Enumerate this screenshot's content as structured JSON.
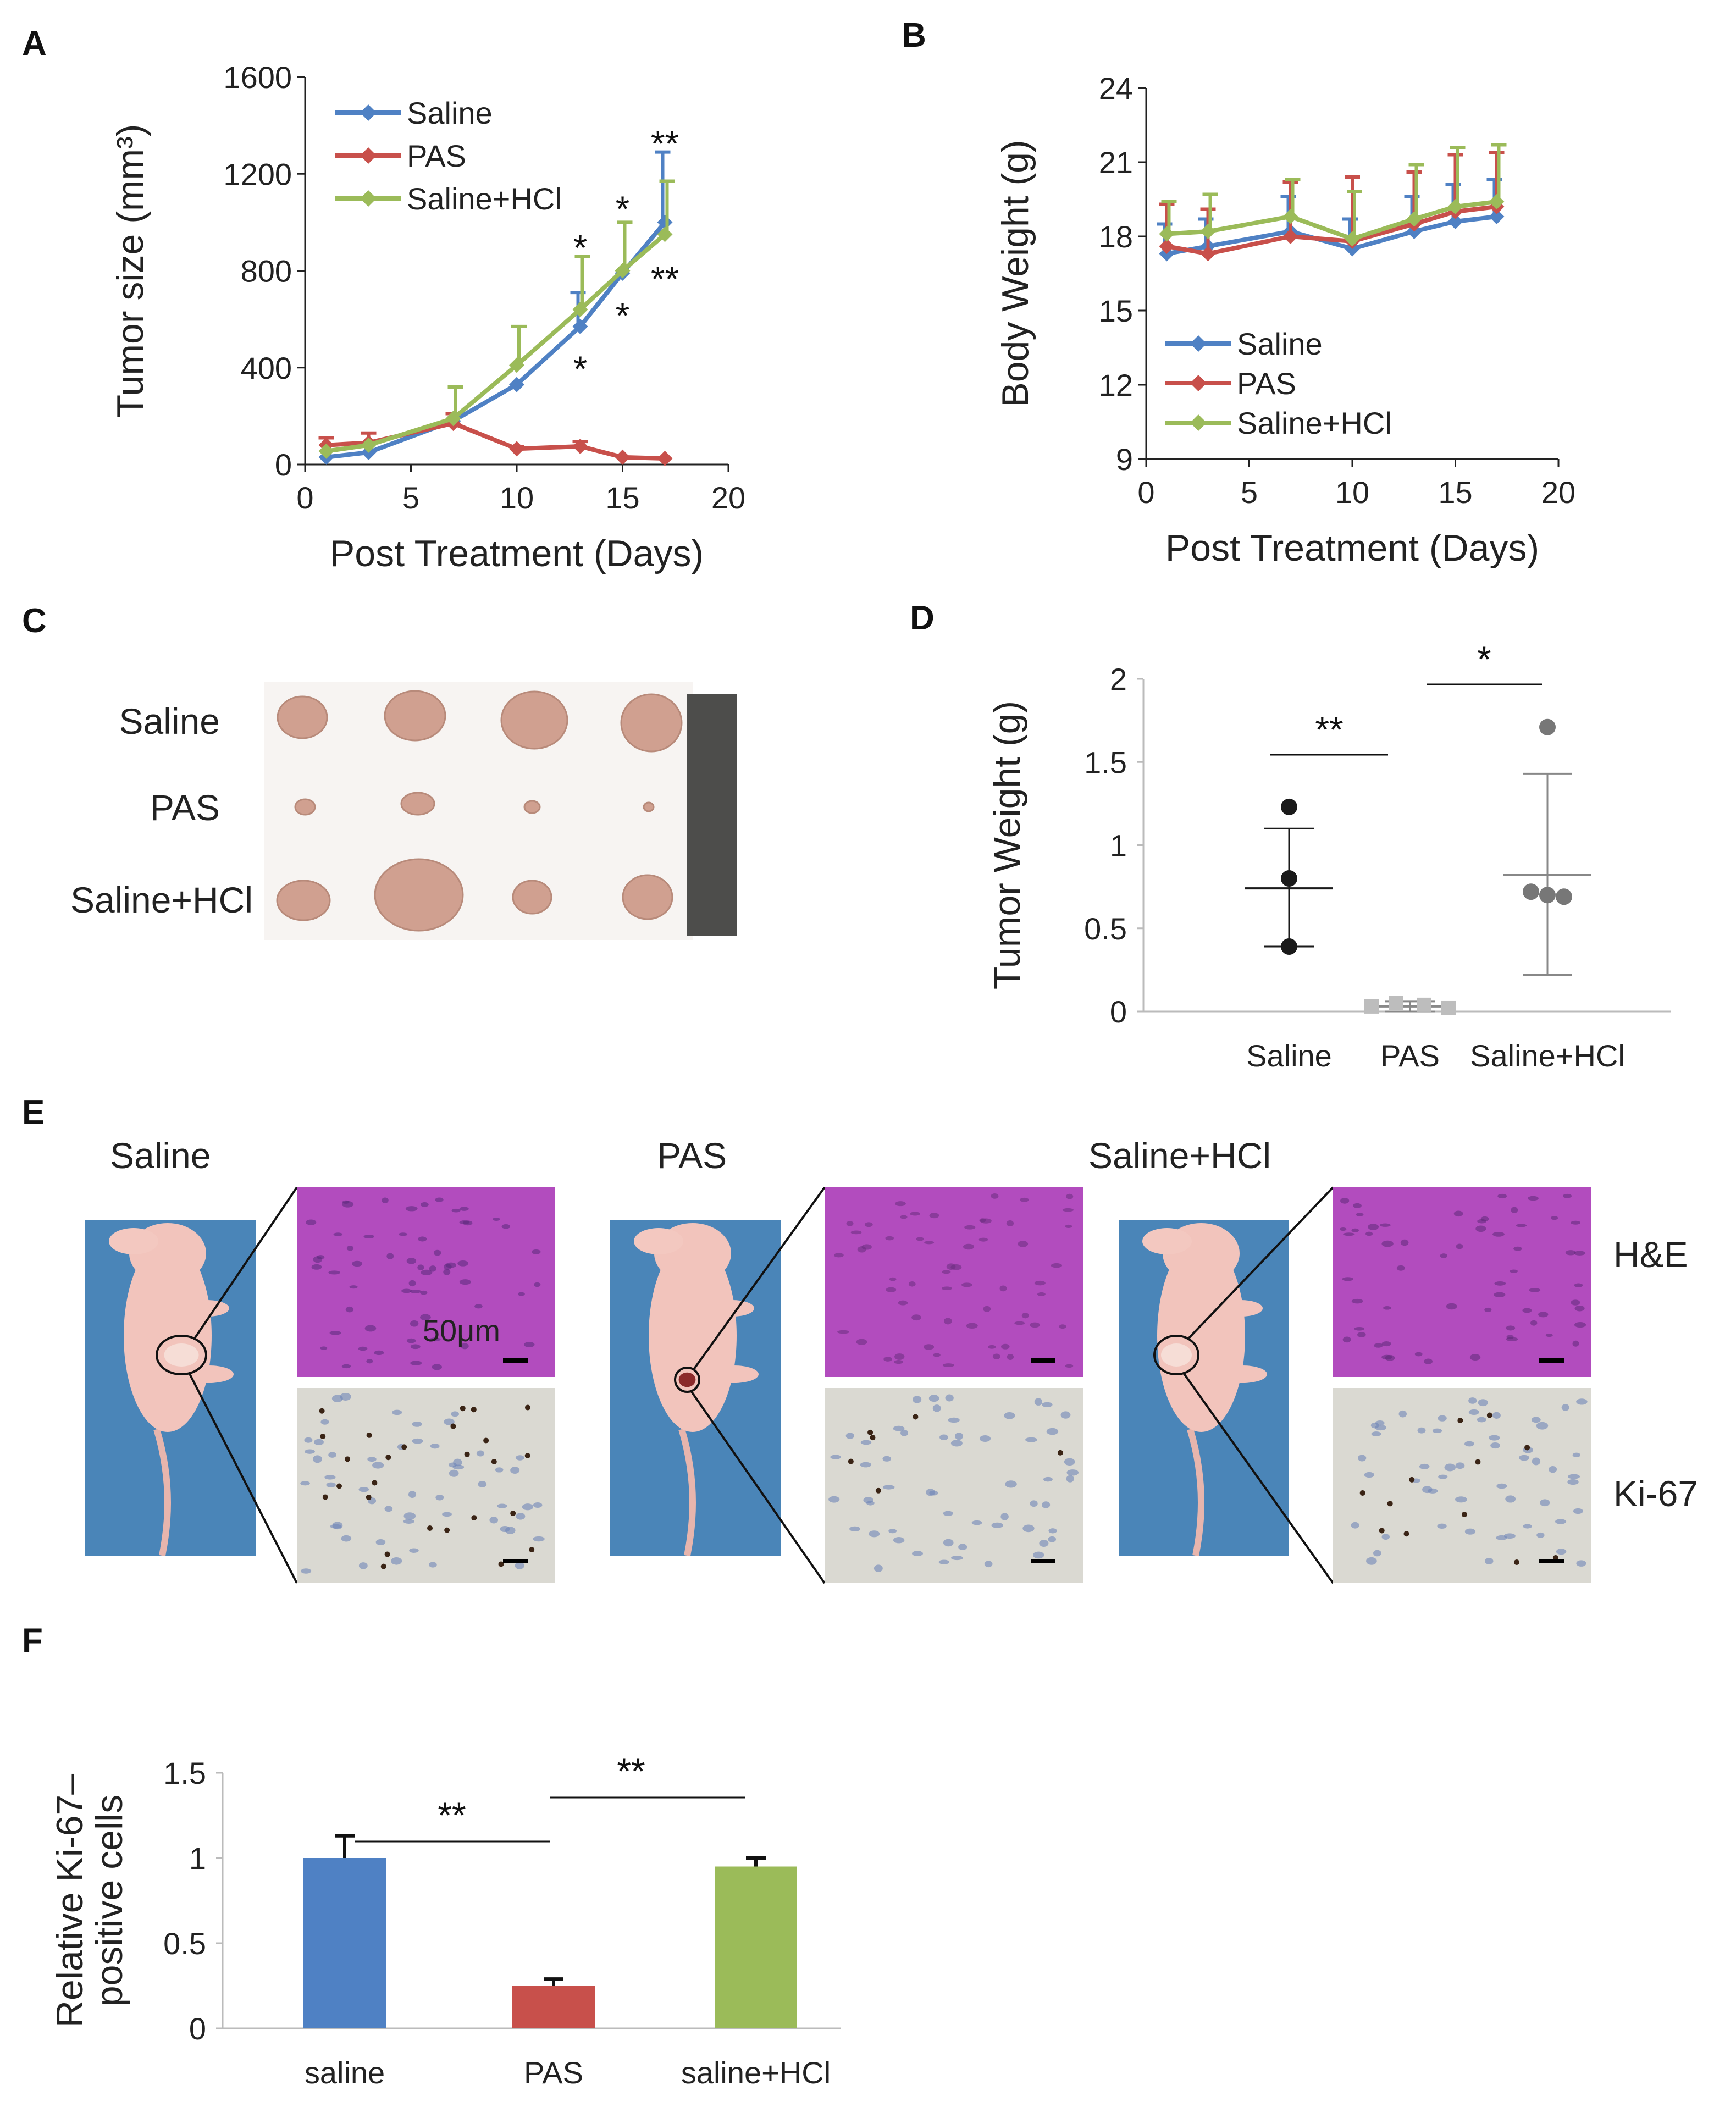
{
  "colors": {
    "saline": "#4f81c4",
    "pas": "#c8504b",
    "salineHcl": "#9bbb59",
    "dot_dark": "#1a1a1a",
    "dot_grey": "#777777",
    "dot_light": "#bdbdbd",
    "bg_blue": "#4a85b8",
    "he_pink": "#b24cbe",
    "ki_bg": "#dad9d2"
  },
  "panels": {
    "A": "A",
    "B": "B",
    "C": "C",
    "D": "D",
    "E": "E",
    "F": "F"
  },
  "chart_data": [
    {
      "id": "A",
      "type": "line",
      "xlabel": "Post Treatment (Days)",
      "ylabel": "Tumor size (mm³)",
      "xlim": [
        0,
        20
      ],
      "ylim": [
        0,
        1600
      ],
      "xticks": [
        0,
        5,
        10,
        15,
        20
      ],
      "yticks": [
        0,
        400,
        800,
        1200,
        1600
      ],
      "series": [
        {
          "name": "Saline",
          "color": "#4f81c4",
          "x": [
            1,
            3,
            7,
            10,
            13,
            15,
            17
          ],
          "y": [
            30,
            50,
            180,
            330,
            570,
            790,
            1000
          ],
          "err": [
            0,
            0,
            0,
            0,
            140,
            0,
            290
          ]
        },
        {
          "name": "PAS",
          "color": "#c8504b",
          "x": [
            1,
            3,
            7,
            10,
            13,
            15,
            17
          ],
          "y": [
            80,
            90,
            170,
            65,
            75,
            30,
            25
          ],
          "err": [
            30,
            40,
            40,
            10,
            20,
            0,
            0
          ]
        },
        {
          "name": "Saline+HCl",
          "color": "#9bbb59",
          "x": [
            1,
            3,
            7,
            10,
            13,
            15,
            17
          ],
          "y": [
            55,
            80,
            190,
            410,
            640,
            800,
            950
          ],
          "err": [
            0,
            0,
            130,
            160,
            220,
            200,
            220
          ]
        }
      ],
      "annotations": [
        {
          "text": "*",
          "x": 13,
          "y": 900
        },
        {
          "text": "*",
          "x": 13,
          "y": 400
        },
        {
          "text": "*",
          "x": 15,
          "y": 1060
        },
        {
          "text": "*",
          "x": 15,
          "y": 620
        },
        {
          "text": "**",
          "x": 17,
          "y": 1330
        },
        {
          "text": "**",
          "x": 17,
          "y": 770
        }
      ]
    },
    {
      "id": "B",
      "type": "line",
      "xlabel": "Post Treatment (Days)",
      "ylabel": "Body Weight (g)",
      "xlim": [
        0,
        20
      ],
      "ylim": [
        9,
        24
      ],
      "xticks": [
        0,
        5,
        10,
        15,
        20
      ],
      "yticks": [
        9,
        12,
        15,
        18,
        21,
        24
      ],
      "series": [
        {
          "name": "Saline",
          "color": "#4f81c4",
          "x": [
            1,
            3,
            7,
            10,
            13,
            15,
            17
          ],
          "y": [
            17.3,
            17.6,
            18.2,
            17.5,
            18.2,
            18.6,
            18.8
          ],
          "err": [
            1.2,
            1.1,
            1.4,
            1.2,
            1.4,
            1.5,
            1.5
          ]
        },
        {
          "name": "PAS",
          "color": "#c8504b",
          "x": [
            1,
            3,
            7,
            10,
            13,
            15,
            17
          ],
          "y": [
            17.6,
            17.3,
            18.0,
            17.8,
            18.5,
            19.0,
            19.2
          ],
          "err": [
            1.7,
            1.8,
            2.2,
            2.6,
            2.1,
            2.3,
            2.2
          ]
        },
        {
          "name": "Saline+HCl",
          "color": "#9bbb59",
          "x": [
            1,
            3,
            7,
            10,
            13,
            15,
            17
          ],
          "y": [
            18.1,
            18.2,
            18.8,
            17.9,
            18.7,
            19.2,
            19.4
          ],
          "err": [
            1.3,
            1.5,
            1.5,
            1.9,
            2.2,
            2.4,
            2.3
          ]
        }
      ]
    },
    {
      "id": "D",
      "type": "scatter",
      "ylabel": "Tumor Weight (g)",
      "ylim": [
        0,
        2
      ],
      "yticks": [
        "0",
        "0.5",
        "1",
        "1.5",
        "2"
      ],
      "categories": [
        "Saline",
        "PAS",
        "Saline+HCl"
      ],
      "groups": [
        {
          "name": "Saline",
          "points": [
            1.23,
            0.8,
            0.39
          ],
          "mean": 0.74,
          "sd_low": 0.39,
          "sd_high": 1.1,
          "color": "#1a1a1a"
        },
        {
          "name": "PAS",
          "points": [
            0.03,
            0.05,
            0.04,
            0.02
          ],
          "mean": 0.03,
          "sd_low": 0.0,
          "sd_high": 0.06,
          "color": "#bdbdbd"
        },
        {
          "name": "Saline+HCl",
          "points": [
            1.71,
            0.72,
            0.69,
            0.7
          ],
          "mean": 0.82,
          "sd_low": 0.22,
          "sd_high": 1.43,
          "color": "#777777"
        }
      ],
      "annotations": [
        {
          "text": "**",
          "between": [
            "Saline",
            "PAS"
          ],
          "y": 1.5
        },
        {
          "text": "*",
          "between": [
            "PAS",
            "Saline+HCl"
          ],
          "y": 1.95
        }
      ]
    },
    {
      "id": "F",
      "type": "bar",
      "ylabel": "Relative Ki-67–positive cells",
      "ylabel_lines": [
        "Relative Ki-67–",
        "positive cells"
      ],
      "ylim": [
        0,
        1.5
      ],
      "yticks": [
        "0",
        "0.5",
        "1",
        "1.5"
      ],
      "categories": [
        "saline",
        "PAS",
        "saline+HCl"
      ],
      "values": [
        1.0,
        0.25,
        0.95
      ],
      "errors": [
        0.13,
        0.04,
        0.05
      ],
      "colors": [
        "#4f81c4",
        "#c8504b",
        "#9bbb59"
      ],
      "annotations": [
        {
          "text": "**",
          "between": [
            "saline",
            "PAS"
          ],
          "y": 1.2
        },
        {
          "text": "**",
          "between": [
            "PAS",
            "saline+HCl"
          ],
          "y": 1.33
        }
      ]
    }
  ],
  "panelC": {
    "rows": [
      "Saline",
      "PAS",
      "Saline+HCl"
    ]
  },
  "panelE": {
    "groups": [
      "Saline",
      "PAS",
      "Saline+HCl"
    ],
    "rows": [
      "H&E",
      "Ki-67"
    ],
    "scale_label": "50μm"
  }
}
